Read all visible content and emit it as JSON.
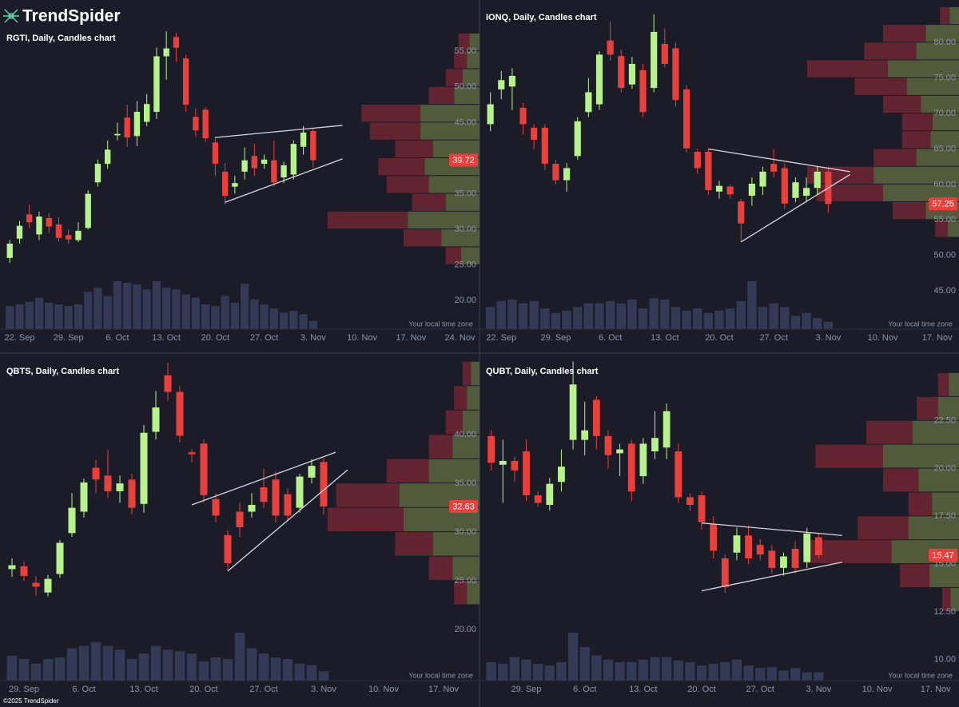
{
  "brand": "TrendSpider",
  "copyright": "©2025 TrendSpider",
  "chart_data": [
    {
      "type": "candlestick",
      "title": "RGTI, Daily, Candles chart",
      "note": "Your local time zone",
      "x": [
        "19. Sep",
        "22. Sep",
        "23. Sep",
        "24. Sep",
        "25. Sep",
        "26. Sep",
        "29. Sep",
        "30. Sep",
        "1. Oct",
        "2. Oct",
        "3. Oct",
        "6. Oct",
        "7. Oct",
        "8. Oct",
        "9. Oct",
        "10. Oct",
        "13. Oct",
        "14. Oct",
        "15. Oct",
        "16. Oct",
        "17. Oct",
        "20. Oct",
        "21. Oct",
        "22. Oct",
        "23. Oct",
        "24. Oct",
        "27. Oct",
        "28. Oct",
        "29. Oct",
        "30. Oct",
        "31. Oct",
        "3. Nov"
      ],
      "open": [
        26.0,
        28.7,
        32.1,
        29.3,
        31.6,
        30.7,
        29.2,
        28.5,
        30.2,
        36.6,
        39.2,
        43.2,
        45.7,
        43.1,
        45.1,
        46.5,
        54.3,
        57.0,
        54.0,
        45.8,
        46.8,
        42.2,
        38.1,
        36.0,
        38.1,
        40.3,
        39.2,
        39.7,
        37.3,
        37.7,
        41.6,
        43.8
      ],
      "high": [
        28.5,
        31.2,
        33.5,
        32.5,
        32.3,
        31.7,
        30.0,
        31.0,
        35.5,
        39.8,
        42.5,
        45.0,
        47.5,
        48.0,
        49.0,
        55.5,
        57.8,
        57.6,
        54.5,
        47.0,
        47.2,
        43.0,
        39.3,
        37.5,
        41.5,
        42.0,
        40.5,
        42.5,
        39.5,
        42.5,
        44.5,
        44.2
      ],
      "low": [
        25.3,
        28.0,
        30.2,
        28.5,
        29.5,
        28.3,
        28.0,
        28.2,
        30.0,
        36.0,
        38.5,
        42.5,
        41.6,
        41.7,
        44.5,
        45.5,
        51.0,
        53.5,
        46.5,
        43.0,
        42.3,
        37.5,
        33.5,
        35.0,
        37.0,
        37.5,
        38.5,
        36.0,
        36.5,
        37.0,
        40.5,
        38.7
      ],
      "close": [
        28.0,
        30.5,
        31.0,
        31.8,
        30.4,
        28.8,
        28.6,
        29.8,
        35.0,
        39.2,
        41.2,
        43.4,
        42.9,
        46.5,
        47.6,
        54.3,
        55.4,
        55.5,
        47.5,
        43.9,
        42.8,
        39.2,
        34.7,
        36.5,
        39.7,
        38.6,
        39.8,
        36.6,
        39.0,
        42.0,
        43.6,
        39.72
      ],
      "volume": [
        28,
        30,
        33,
        38,
        32,
        30,
        28,
        30,
        45,
        50,
        40,
        58,
        56,
        54,
        48,
        58,
        50,
        48,
        42,
        38,
        30,
        28,
        40,
        32,
        55,
        36,
        30,
        25,
        20,
        22,
        18,
        10
      ],
      "xlim": [
        "18. Sep",
        "26. Nov"
      ],
      "xticks": [
        "22. Sep",
        "29. Sep",
        "6. Oct",
        "13. Oct",
        "20. Oct",
        "27. Oct",
        "3. Nov",
        "10. Nov",
        "17. Nov",
        "24. Nov"
      ],
      "ylim": [
        16,
        62.2
      ],
      "yticks": [
        {
          "value": 20,
          "label": "20.00"
        },
        {
          "value": 25,
          "label": "25.00"
        },
        {
          "value": 30,
          "label": "30.00"
        },
        {
          "value": 35,
          "label": "35.00"
        },
        {
          "value": 40,
          "label": "40.00"
        },
        {
          "value": 45,
          "label": "45.00"
        },
        {
          "value": 50,
          "label": "50.00"
        },
        {
          "value": 55,
          "label": "55.00"
        }
      ],
      "last_price": 39.72,
      "trendlines": [
        {
          "x": [
            "20. Oct",
            "6. Nov"
          ],
          "y": [
            42.9,
            44.6
          ]
        },
        {
          "x": [
            "21. Oct",
            "6. Nov"
          ],
          "y": [
            33.8,
            39.9
          ]
        }
      ],
      "volume_profile": {
        "bins": [
          25,
          27.5,
          30,
          32.5,
          35,
          37.5,
          40,
          42.5,
          45,
          47.5,
          50,
          52.5,
          55,
          57.5
        ],
        "buy": [
          22,
          45,
          85,
          40,
          60,
          65,
          55,
          70,
          70,
          30,
          20,
          15,
          12
        ],
        "sell": [
          18,
          45,
          95,
          40,
          50,
          55,
          45,
          60,
          70,
          30,
          20,
          15,
          13
        ]
      },
      "up_color": "#b8f28c",
      "down_color": "#e8403d",
      "volume_color": "#343a55",
      "buy_color": "#5a6640",
      "sell_color": "#6e2631",
      "trendline_color": "#d8d8e0"
    },
    {
      "type": "candlestick",
      "title": "IONQ, Daily, Candles chart",
      "note": "Your local time zone",
      "x": [
        "19. Sep",
        "22. Sep",
        "23. Sep",
        "24. Sep",
        "25. Sep",
        "26. Sep",
        "29. Sep",
        "30. Sep",
        "1. Oct",
        "2. Oct",
        "3. Oct",
        "6. Oct",
        "7. Oct",
        "8. Oct",
        "9. Oct",
        "10. Oct",
        "13. Oct",
        "14. Oct",
        "15. Oct",
        "16. Oct",
        "17. Oct",
        "20. Oct",
        "21. Oct",
        "22. Oct",
        "23. Oct",
        "24. Oct",
        "27. Oct",
        "28. Oct",
        "29. Oct",
        "30. Oct",
        "31. Oct",
        "3. Nov"
      ],
      "open": [
        68.5,
        73.4,
        73.8,
        70.8,
        68.0,
        68.0,
        62.9,
        60.6,
        64.0,
        70.2,
        71.3,
        80.3,
        78.1,
        74.1,
        76.1,
        73.6,
        79.8,
        79.2,
        73.4,
        64.6,
        64.6,
        59.0,
        59.7,
        57.6,
        58.4,
        59.7,
        62.9,
        62.3,
        58.1,
        58.4,
        59.5,
        61.8
      ],
      "high": [
        73.0,
        76.0,
        76.4,
        71.5,
        68.5,
        68.5,
        63.5,
        63.0,
        69.5,
        75.0,
        78.8,
        83.0,
        79.0,
        78.0,
        77.0,
        84.0,
        82.0,
        80.0,
        74.0,
        65.0,
        65.0,
        60.5,
        60.0,
        58.0,
        61.0,
        62.5,
        65.0,
        63.0,
        61.0,
        61.0,
        62.5,
        62.5
      ],
      "low": [
        67.5,
        72.0,
        70.5,
        67.0,
        65.0,
        62.0,
        60.0,
        59.0,
        63.5,
        69.5,
        70.5,
        77.5,
        73.0,
        73.5,
        69.5,
        73.0,
        76.5,
        71.0,
        64.5,
        61.5,
        58.5,
        58.0,
        58.0,
        51.9,
        57.0,
        58.5,
        61.0,
        56.5,
        57.5,
        57.5,
        58.5,
        56.0
      ],
      "close": [
        71.3,
        74.7,
        75.3,
        68.5,
        66.3,
        62.9,
        60.6,
        62.3,
        68.9,
        73.0,
        78.3,
        78.3,
        73.6,
        77.0,
        70.2,
        81.5,
        77.0,
        71.9,
        65.1,
        62.3,
        59.2,
        59.8,
        58.6,
        54.5,
        60.1,
        61.8,
        61.8,
        57.3,
        60.3,
        59.5,
        61.8,
        57.25
      ],
      "volume": [
        30,
        38,
        40,
        35,
        38,
        28,
        22,
        25,
        30,
        35,
        35,
        38,
        35,
        40,
        28,
        42,
        40,
        30,
        25,
        28,
        22,
        25,
        28,
        38,
        65,
        30,
        35,
        30,
        18,
        22,
        15,
        10
      ],
      "xlim": [
        "18. Sep",
        "19. Nov"
      ],
      "xticks": [
        "22. Sep",
        "29. Sep",
        "6. Oct",
        "13. Oct",
        "20. Oct",
        "27. Oct",
        "3. Nov",
        "10. Nov",
        "17. Nov"
      ],
      "ylim": [
        39.6,
        86
      ],
      "yticks": [
        {
          "value": 45,
          "label": "45.00"
        },
        {
          "value": 50,
          "label": "50.00"
        },
        {
          "value": 55,
          "label": "55.00"
        },
        {
          "value": 60,
          "label": "60.00"
        },
        {
          "value": 65,
          "label": "65.00"
        },
        {
          "value": 70,
          "label": "70.00"
        },
        {
          "value": 75,
          "label": "75.00"
        },
        {
          "value": 80,
          "label": "80.00"
        }
      ],
      "last_price": 57.25,
      "trendlines": [
        {
          "x": [
            "17. Oct",
            "5. Nov"
          ],
          "y": [
            65.0,
            61.8
          ]
        },
        {
          "x": [
            "22. Oct",
            "5. Nov"
          ],
          "y": [
            51.9,
            61.4
          ]
        }
      ],
      "volume_profile": {
        "bins": [
          52.5,
          55,
          57.5,
          60,
          62.5,
          65,
          67.5,
          70,
          72.5,
          75,
          77.5,
          80,
          82.5,
          85
        ],
        "buy": [
          12,
          35,
          80,
          90,
          45,
          30,
          28,
          40,
          55,
          75,
          45,
          35,
          10
        ],
        "sell": [
          13,
          35,
          70,
          70,
          45,
          30,
          32,
          40,
          55,
          85,
          55,
          45,
          10
        ]
      },
      "up_color": "#b8f28c",
      "down_color": "#e8403d",
      "volume_color": "#343a55",
      "buy_color": "#5a6640",
      "sell_color": "#6e2631",
      "trendline_color": "#d8d8e0"
    },
    {
      "type": "candlestick",
      "title": "QBTS, Daily, Candles chart",
      "note": "Your local time zone",
      "x": [
        "26. Sep",
        "29. Sep",
        "30. Sep",
        "1. Oct",
        "2. Oct",
        "3. Oct",
        "6. Oct",
        "7. Oct",
        "8. Oct",
        "9. Oct",
        "10. Oct",
        "13. Oct",
        "14. Oct",
        "15. Oct",
        "16. Oct",
        "17. Oct",
        "20. Oct",
        "21. Oct",
        "22. Oct",
        "23. Oct",
        "24. Oct",
        "27. Oct",
        "28. Oct",
        "29. Oct",
        "30. Oct",
        "31. Oct",
        "3. Nov"
      ],
      "open": [
        26.2,
        26.5,
        24.8,
        23.8,
        25.7,
        29.9,
        32.1,
        36.6,
        35.8,
        34.2,
        35.4,
        32.9,
        40.3,
        46.1,
        44.4,
        38.2,
        39.1,
        33.4,
        29.7,
        32.1,
        32.1,
        34.6,
        35.4,
        33.9,
        32.5,
        35.6,
        37.2
      ],
      "high": [
        27.3,
        27.0,
        25.5,
        25.6,
        29.2,
        34.0,
        35.5,
        37.4,
        38.5,
        35.8,
        36.0,
        41.0,
        44.5,
        47.4,
        45.0,
        38.5,
        39.5,
        34.0,
        30.2,
        33.0,
        34.0,
        36.5,
        36.2,
        34.5,
        36.0,
        37.5,
        37.6
      ],
      "low": [
        25.4,
        25.0,
        23.5,
        23.4,
        25.3,
        29.5,
        31.5,
        34.0,
        33.5,
        33.0,
        31.8,
        32.0,
        39.5,
        43.5,
        39.2,
        37.2,
        33.0,
        31.0,
        26.0,
        29.5,
        31.5,
        32.5,
        31.0,
        31.2,
        32.0,
        35.0,
        31.8
      ],
      "close": [
        26.6,
        25.5,
        24.4,
        25.2,
        28.9,
        32.5,
        35.1,
        35.4,
        34.2,
        35.0,
        32.5,
        40.2,
        42.8,
        44.4,
        39.9,
        38.0,
        33.8,
        31.7,
        26.8,
        30.5,
        32.8,
        33.1,
        31.7,
        31.7,
        35.7,
        36.8,
        32.63
      ],
      "volume": [
        32,
        28,
        22,
        28,
        30,
        42,
        45,
        50,
        45,
        40,
        28,
        35,
        45,
        40,
        38,
        35,
        25,
        30,
        28,
        62,
        42,
        35,
        30,
        28,
        22,
        20,
        12
      ],
      "xlim": [
        "25. Sep",
        "20. Nov"
      ],
      "xticks": [
        "29. Sep",
        "6. Oct",
        "13. Oct",
        "20. Oct",
        "27. Oct",
        "3. Nov",
        "10. Nov",
        "17. Nov"
      ],
      "ylim": [
        14.75,
        48.3
      ],
      "yticks": [
        {
          "value": 20,
          "label": "20.00"
        },
        {
          "value": 25,
          "label": "25.00"
        },
        {
          "value": 30,
          "label": "30.00"
        },
        {
          "value": 35,
          "label": "35.00"
        },
        {
          "value": 40,
          "label": "40.00"
        }
      ],
      "last_price": 32.63,
      "trendlines": [
        {
          "x": [
            "17. Oct",
            "4. Nov"
          ],
          "y": [
            32.8,
            38.2
          ]
        },
        {
          "x": [
            "22. Oct",
            "5. Nov"
          ],
          "y": [
            26.0,
            36.4
          ]
        }
      ],
      "volume_profile": {
        "bins": [
          22.5,
          25,
          27.5,
          30,
          32.5,
          35,
          37.5,
          40,
          42.5,
          45,
          47.5
        ],
        "buy": [
          15,
          32,
          55,
          90,
          95,
          60,
          32,
          20,
          15,
          10
        ],
        "sell": [
          15,
          28,
          45,
          90,
          75,
          50,
          28,
          20,
          15,
          10
        ]
      },
      "up_color": "#b8f28c",
      "down_color": "#e8403d",
      "volume_color": "#343a55",
      "buy_color": "#5a6640",
      "sell_color": "#6e2631",
      "trendline_color": "#d8d8e0"
    },
    {
      "type": "candlestick",
      "title": "QUBT, Daily, Candles chart",
      "note": "Your local time zone",
      "x": [
        "24. Sep",
        "25. Sep",
        "26. Sep",
        "29. Sep",
        "30. Sep",
        "1. Oct",
        "2. Oct",
        "3. Oct",
        "6. Oct",
        "7. Oct",
        "8. Oct",
        "9. Oct",
        "10. Oct",
        "13. Oct",
        "14. Oct",
        "15. Oct",
        "16. Oct",
        "17. Oct",
        "20. Oct",
        "21. Oct",
        "22. Oct",
        "23. Oct",
        "24. Oct",
        "27. Oct",
        "28. Oct",
        "29. Oct",
        "30. Oct",
        "31. Oct",
        "3. Nov"
      ],
      "open": [
        21.7,
        20.2,
        20.4,
        20.9,
        18.6,
        18.1,
        19.3,
        21.5,
        21.5,
        23.6,
        21.7,
        20.8,
        21.3,
        19.6,
        20.9,
        21.1,
        20.9,
        18.5,
        18.6,
        17.1,
        15.3,
        15.6,
        16.5,
        16.0,
        15.7,
        14.8,
        15.8,
        15.1,
        16.4
      ],
      "high": [
        22.0,
        21.5,
        20.6,
        21.5,
        18.8,
        19.5,
        21.0,
        25.6,
        23.5,
        23.8,
        22.0,
        21.3,
        21.5,
        21.6,
        23.0,
        23.4,
        21.3,
        18.7,
        18.8,
        17.5,
        15.5,
        16.9,
        17.0,
        16.3,
        16.0,
        15.6,
        16.2,
        16.9,
        16.6
      ],
      "low": [
        19.9,
        18.2,
        19.3,
        18.3,
        18.0,
        17.8,
        18.8,
        21.0,
        20.7,
        21.0,
        20.0,
        19.6,
        18.3,
        19.2,
        20.5,
        20.5,
        18.2,
        17.8,
        16.8,
        15.3,
        13.5,
        15.2,
        15.0,
        15.2,
        14.5,
        14.4,
        14.5,
        14.8,
        15.3
      ],
      "close": [
        20.3,
        20.4,
        19.9,
        18.6,
        18.2,
        19.2,
        20.1,
        24.4,
        22.0,
        21.7,
        20.7,
        21.0,
        18.8,
        21.3,
        21.6,
        23.0,
        18.5,
        18.1,
        17.2,
        15.7,
        13.8,
        16.5,
        15.3,
        15.5,
        14.8,
        15.4,
        14.8,
        16.6,
        15.47
      ],
      "volume": [
        22,
        20,
        28,
        25,
        20,
        18,
        22,
        57,
        40,
        30,
        25,
        22,
        22,
        25,
        28,
        28,
        24,
        22,
        18,
        20,
        22,
        25,
        18,
        15,
        16,
        12,
        15,
        10,
        10
      ],
      "xlim": [
        "23. Sep",
        "19. Nov"
      ],
      "xticks": [
        "29. Sep",
        "6. Oct",
        "13. Oct",
        "20. Oct",
        "27. Oct",
        "3. Nov",
        "10. Nov",
        "17. Nov"
      ],
      "ylim": [
        8.9,
        26
      ],
      "yticks": [
        {
          "value": 10,
          "label": "10.00"
        },
        {
          "value": 12.5,
          "label": "12.50"
        },
        {
          "value": 15,
          "label": "15.00"
        },
        {
          "value": 17.5,
          "label": "17.50"
        },
        {
          "value": 20,
          "label": "20.00"
        },
        {
          "value": 22.5,
          "label": "22.50"
        }
      ],
      "last_price": 15.47,
      "trendlines": [
        {
          "x": [
            "20. Oct",
            "5. Nov"
          ],
          "y": [
            17.15,
            16.5
          ]
        },
        {
          "x": [
            "20. Oct",
            "5. Nov"
          ],
          "y": [
            13.6,
            15.1
          ]
        }
      ],
      "volume_profile": {
        "bins": [
          12.5,
          13.75,
          15,
          16.25,
          17.5,
          18.75,
          20,
          21.25,
          22.5,
          23.75,
          25
        ],
        "buy": [
          10,
          35,
          80,
          60,
          32,
          48,
          90,
          55,
          25,
          12
        ],
        "sell": [
          10,
          35,
          100,
          60,
          28,
          42,
          80,
          55,
          25,
          13
        ]
      },
      "up_color": "#b8f28c",
      "down_color": "#e8403d",
      "volume_color": "#343a55",
      "buy_color": "#5a6640",
      "sell_color": "#6e2631",
      "trendline_color": "#d8d8e0"
    }
  ]
}
